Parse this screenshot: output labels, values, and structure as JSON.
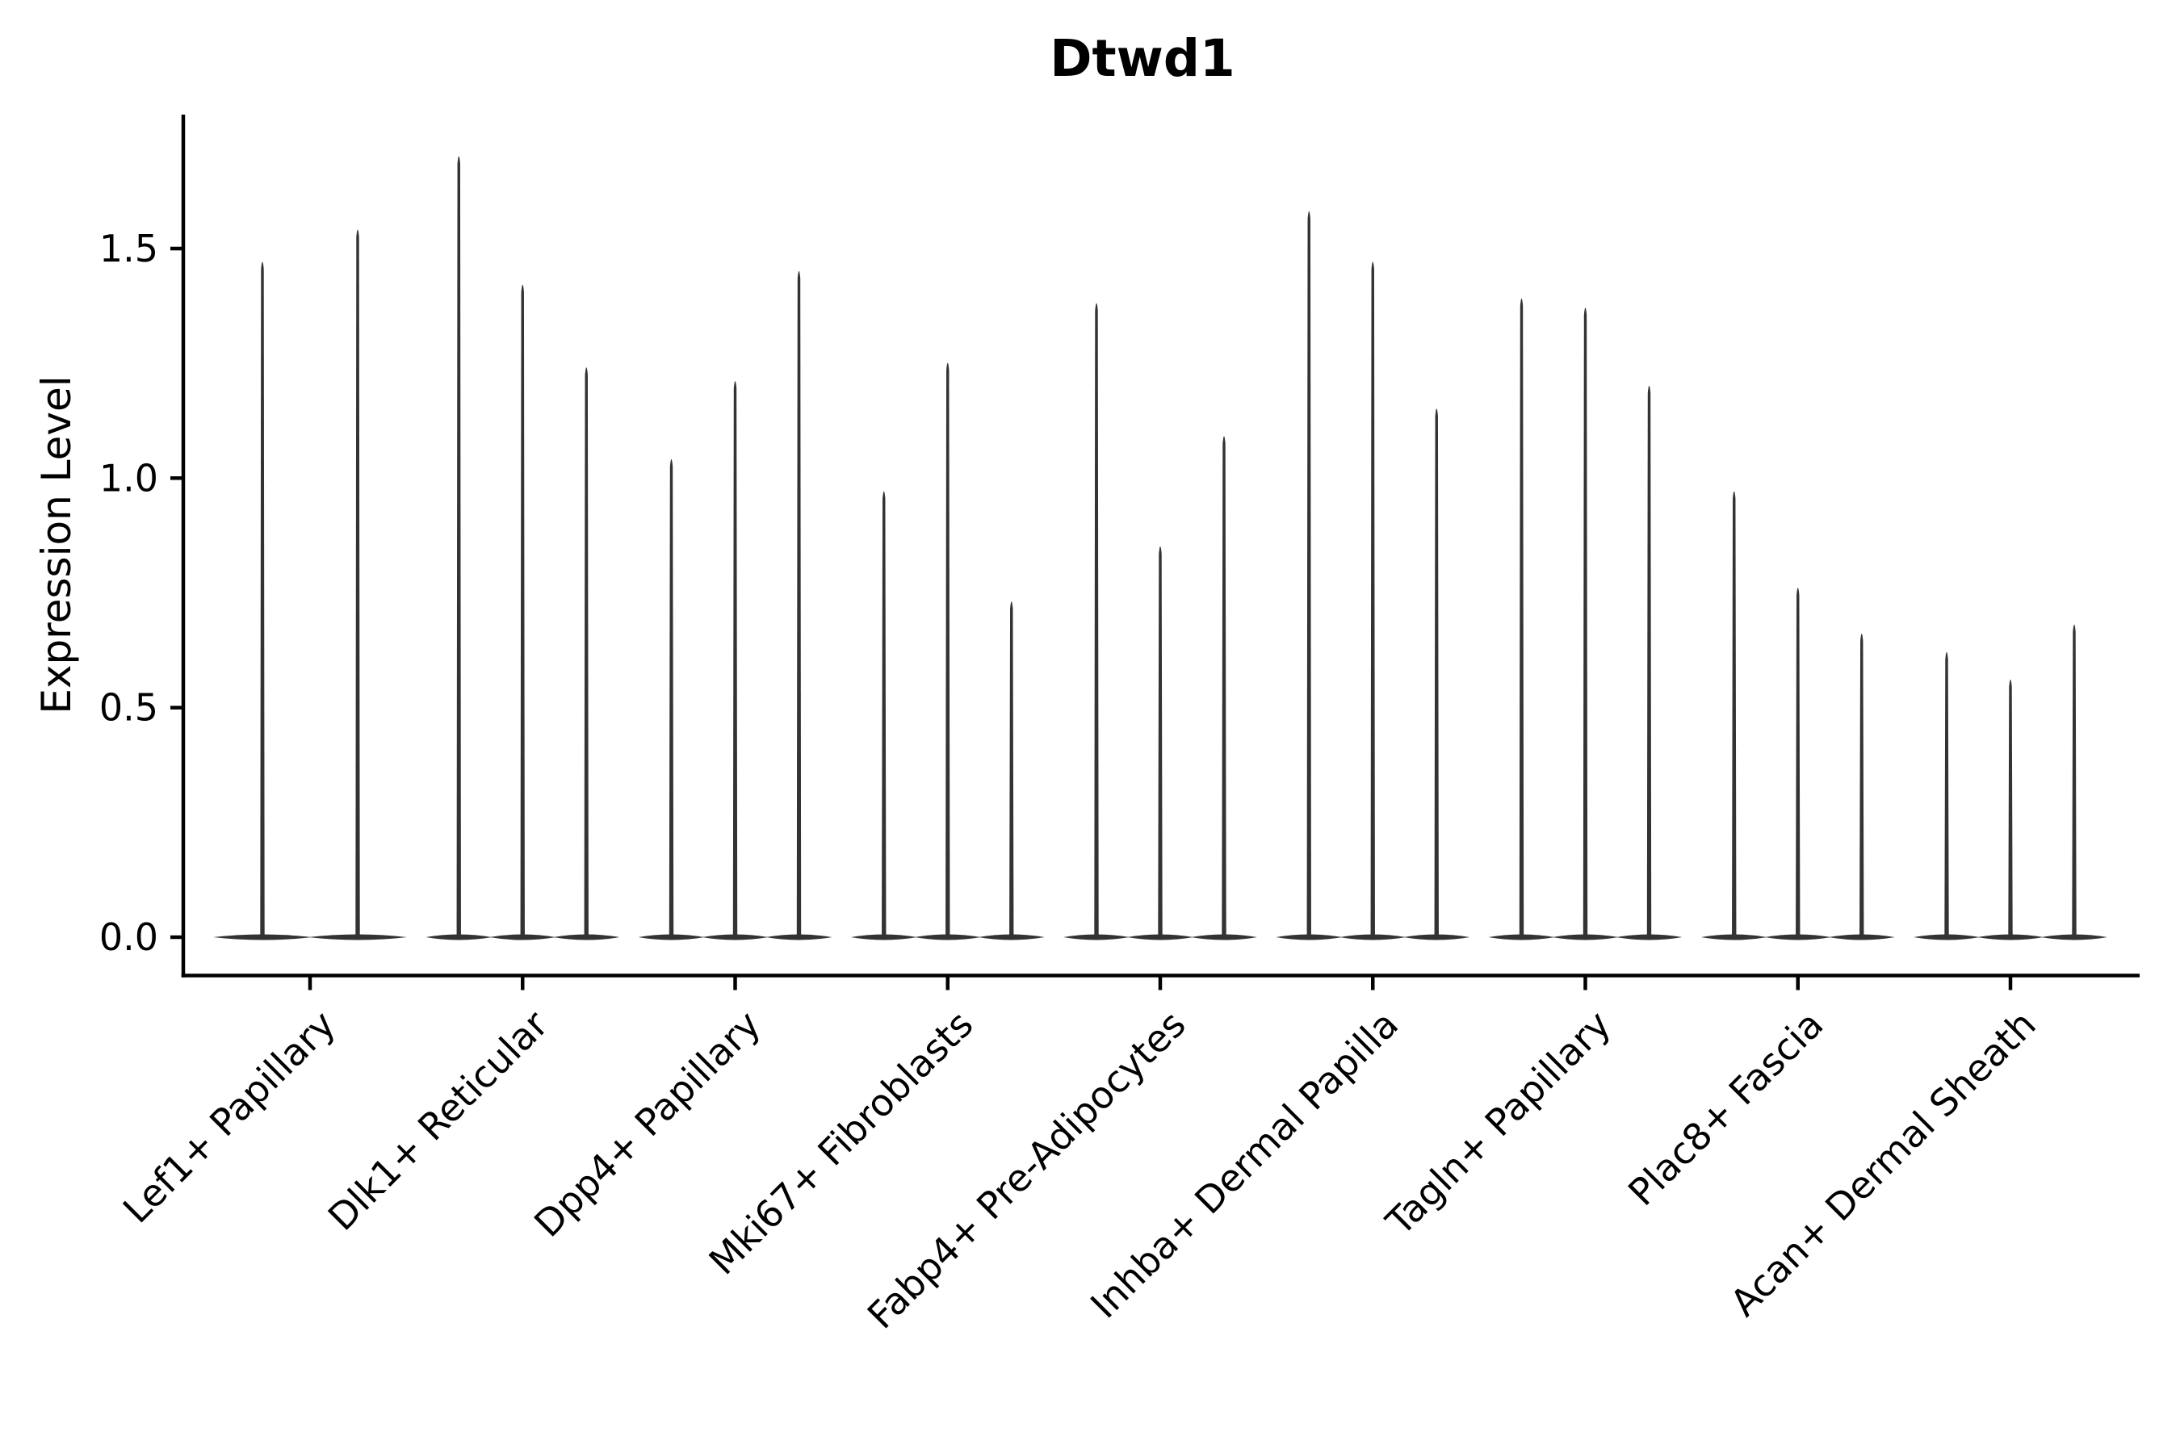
{
  "colors": {
    "violin": "#333333",
    "axis": "#000000",
    "text": "#000000",
    "background": "#ffffff"
  },
  "chart_data": {
    "type": "violin",
    "title": "Dtwd1",
    "ylabel": "Expression Level",
    "xlabel": "",
    "yticks": [
      0.0,
      0.5,
      1.0,
      1.5
    ],
    "ylim": [
      -0.08,
      1.79
    ],
    "grid": false,
    "legend_position": "none",
    "categories": [
      "Lef1+ Papillary",
      "Dlk1+ Reticular",
      "Dpp4+ Papillary",
      "Mki67+ Fibroblasts",
      "Fabp4+ Pre-Adipocytes",
      "Inhba+ Dermal Papilla",
      "Tagln+ Papillary",
      "Plac8+ Fascia",
      "Acan+ Dermal Sheath"
    ],
    "series": [
      {
        "category": "Lef1+ Papillary",
        "violin_peaks": [
          1.48,
          1.55
        ]
      },
      {
        "category": "Dlk1+ Reticular",
        "violin_peaks": [
          1.71,
          1.43,
          1.25
        ]
      },
      {
        "category": "Dpp4+ Papillary",
        "violin_peaks": [
          1.05,
          1.22,
          1.46
        ]
      },
      {
        "category": "Mki67+ Fibroblasts",
        "violin_peaks": [
          0.98,
          1.26,
          0.74
        ]
      },
      {
        "category": "Fabp4+ Pre-Adipocytes",
        "violin_peaks": [
          1.39,
          0.86,
          1.1
        ]
      },
      {
        "category": "Inhba+ Dermal Papilla",
        "violin_peaks": [
          1.59,
          1.48,
          1.16
        ]
      },
      {
        "category": "Tagln+ Papillary",
        "violin_peaks": [
          1.4,
          1.38,
          1.21
        ]
      },
      {
        "category": "Plac8+ Fascia",
        "violin_peaks": [
          0.98,
          0.77,
          0.67
        ]
      },
      {
        "category": "Acan+ Dermal Sheath",
        "violin_peaks": [
          0.63,
          0.57,
          0.69
        ]
      }
    ]
  }
}
